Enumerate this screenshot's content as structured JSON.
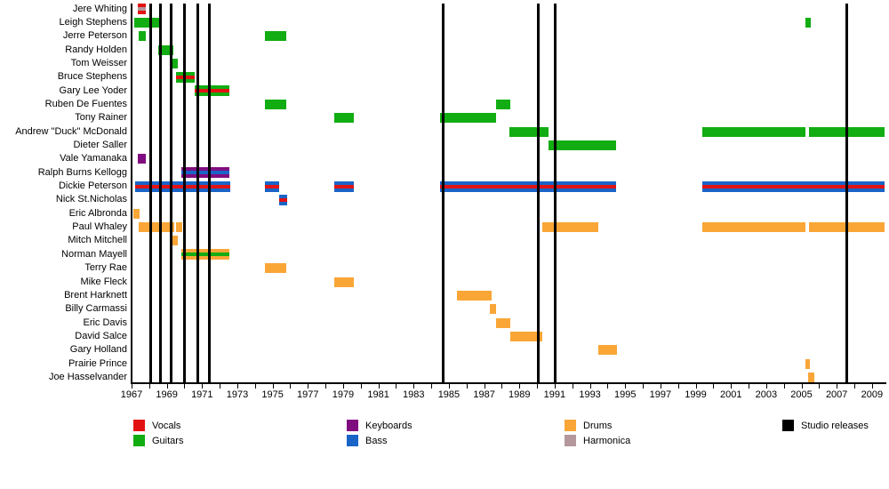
{
  "colors": {
    "vocals": "#e31212",
    "guitars": "#12ad12",
    "keyboards": "#800d80",
    "bass": "#1a64c8",
    "drums": "#f9a637",
    "harmonica": "#b3979b",
    "studio_release": "#000000",
    "axis": "#000000"
  },
  "legend": {
    "items": [
      {
        "label": "Vocals",
        "role": "vocals",
        "col": 0,
        "row": 0
      },
      {
        "label": "Guitars",
        "role": "guitars",
        "col": 0,
        "row": 1
      },
      {
        "label": "Keyboards",
        "role": "keyboards",
        "col": 1,
        "row": 0
      },
      {
        "label": "Bass",
        "role": "bass",
        "col": 1,
        "row": 1
      },
      {
        "label": "Drums",
        "role": "drums",
        "col": 2,
        "row": 0
      },
      {
        "label": "Harmonica",
        "role": "harmonica",
        "col": 2,
        "row": 1
      },
      {
        "label": "Studio releases",
        "role": "studio_release",
        "col": 3,
        "row": 0
      }
    ]
  },
  "chart_data": {
    "type": "timeline-gantt",
    "x_axis": {
      "start_year": 1967,
      "end_year": 2009.7,
      "minor_tick_every_years": 1,
      "tick_labels": [
        "1967",
        "1969",
        "1971",
        "1973",
        "1975",
        "1977",
        "1979",
        "1981",
        "1983",
        "1985",
        "1987",
        "1989",
        "1991",
        "1993",
        "1995",
        "1997",
        "1999",
        "2001",
        "2003",
        "2005",
        "2007",
        "2009"
      ]
    },
    "studio_release_years": [
      1968.1,
      1968.65,
      1969.25,
      1970.0,
      1970.75,
      1971.4,
      1984.7,
      1990.05,
      1991.05,
      2007.55
    ],
    "members": [
      {
        "name": "Jere Whiting",
        "segments": [
          {
            "start": 1967.35,
            "end": 1967.8,
            "roles": [
              "vocals",
              "harmonica"
            ]
          }
        ]
      },
      {
        "name": "Leigh Stephens",
        "segments": [
          {
            "start": 1967.15,
            "end": 1968.6,
            "roles": [
              "guitars"
            ]
          },
          {
            "start": 2005.2,
            "end": 2005.55,
            "roles": [
              "guitars"
            ]
          }
        ]
      },
      {
        "name": "Jerre Peterson",
        "segments": [
          {
            "start": 1967.4,
            "end": 1967.8,
            "roles": [
              "guitars"
            ]
          },
          {
            "start": 1974.55,
            "end": 1975.8,
            "roles": [
              "guitars"
            ]
          }
        ]
      },
      {
        "name": "Randy Holden",
        "segments": [
          {
            "start": 1968.5,
            "end": 1969.35,
            "roles": [
              "guitars"
            ]
          }
        ]
      },
      {
        "name": "Tom Weisser",
        "segments": [
          {
            "start": 1969.25,
            "end": 1969.6,
            "roles": [
              "guitars"
            ]
          }
        ]
      },
      {
        "name": "Bruce Stephens",
        "segments": [
          {
            "start": 1969.5,
            "end": 1970.6,
            "roles": [
              "guitars",
              "vocals"
            ]
          }
        ]
      },
      {
        "name": "Gary Lee Yoder",
        "segments": [
          {
            "start": 1970.6,
            "end": 1972.55,
            "roles": [
              "guitars",
              "vocals"
            ]
          }
        ]
      },
      {
        "name": "Ruben De Fuentes",
        "segments": [
          {
            "start": 1974.55,
            "end": 1975.8,
            "roles": [
              "guitars"
            ]
          },
          {
            "start": 1987.7,
            "end": 1988.5,
            "roles": [
              "guitars"
            ]
          }
        ]
      },
      {
        "name": "Tony Rainer",
        "segments": [
          {
            "start": 1978.5,
            "end": 1979.6,
            "roles": [
              "guitars"
            ]
          },
          {
            "start": 1984.5,
            "end": 1987.7,
            "roles": [
              "guitars"
            ]
          }
        ]
      },
      {
        "name": "Andrew \"Duck\" McDonald",
        "segments": [
          {
            "start": 1988.45,
            "end": 1990.65,
            "roles": [
              "guitars"
            ]
          },
          {
            "start": 1999.4,
            "end": 2005.25,
            "roles": [
              "guitars"
            ]
          },
          {
            "start": 2005.45,
            "end": 2009.7,
            "roles": [
              "guitars"
            ]
          }
        ]
      },
      {
        "name": "Dieter Saller",
        "segments": [
          {
            "start": 1990.65,
            "end": 1994.5,
            "roles": [
              "guitars"
            ]
          }
        ]
      },
      {
        "name": "Vale Yamanaka",
        "segments": [
          {
            "start": 1967.35,
            "end": 1967.8,
            "roles": [
              "keyboards"
            ]
          }
        ]
      },
      {
        "name": "Ralph Burns Kellogg",
        "segments": [
          {
            "start": 1969.8,
            "end": 1972.55,
            "roles": [
              "keyboards",
              "bass"
            ]
          }
        ]
      },
      {
        "name": "Dickie Peterson",
        "segments": [
          {
            "start": 1967.2,
            "end": 1972.6,
            "roles": [
              "bass",
              "vocals"
            ]
          },
          {
            "start": 1974.55,
            "end": 1975.35,
            "roles": [
              "bass",
              "vocals"
            ]
          },
          {
            "start": 1978.5,
            "end": 1979.6,
            "roles": [
              "bass",
              "vocals"
            ]
          },
          {
            "start": 1984.5,
            "end": 1994.5,
            "roles": [
              "bass",
              "vocals"
            ]
          },
          {
            "start": 1999.4,
            "end": 2009.7,
            "roles": [
              "bass",
              "vocals"
            ]
          }
        ]
      },
      {
        "name": "Nick St.Nicholas",
        "segments": [
          {
            "start": 1975.35,
            "end": 1975.8,
            "roles": [
              "bass",
              "vocals"
            ]
          }
        ]
      },
      {
        "name": "Eric Albronda",
        "segments": [
          {
            "start": 1967.1,
            "end": 1967.45,
            "roles": [
              "drums"
            ]
          }
        ]
      },
      {
        "name": "Paul Whaley",
        "segments": [
          {
            "start": 1967.4,
            "end": 1969.4,
            "roles": [
              "drums"
            ]
          },
          {
            "start": 1969.5,
            "end": 1969.9,
            "roles": [
              "drums"
            ]
          },
          {
            "start": 1990.3,
            "end": 1993.5,
            "roles": [
              "drums"
            ]
          },
          {
            "start": 1999.4,
            "end": 2005.25,
            "roles": [
              "drums"
            ]
          },
          {
            "start": 2005.45,
            "end": 2009.7,
            "roles": [
              "drums"
            ]
          }
        ]
      },
      {
        "name": "Mitch Mitchell",
        "segments": [
          {
            "start": 1969.3,
            "end": 1969.6,
            "roles": [
              "drums"
            ]
          }
        ]
      },
      {
        "name": "Norman Mayell",
        "segments": [
          {
            "start": 1969.8,
            "end": 1972.55,
            "roles": [
              "drums",
              "guitars"
            ]
          }
        ]
      },
      {
        "name": "Terry Rae",
        "segments": [
          {
            "start": 1974.55,
            "end": 1975.8,
            "roles": [
              "drums"
            ]
          }
        ]
      },
      {
        "name": "Mike Fleck",
        "segments": [
          {
            "start": 1978.5,
            "end": 1979.6,
            "roles": [
              "drums"
            ]
          }
        ]
      },
      {
        "name": "Brent Harknett",
        "segments": [
          {
            "start": 1985.45,
            "end": 1987.4,
            "roles": [
              "drums"
            ]
          }
        ]
      },
      {
        "name": "Billy Carmassi",
        "segments": [
          {
            "start": 1987.3,
            "end": 1987.7,
            "roles": [
              "drums"
            ]
          }
        ]
      },
      {
        "name": "Eric Davis",
        "segments": [
          {
            "start": 1987.7,
            "end": 1988.5,
            "roles": [
              "drums"
            ]
          }
        ]
      },
      {
        "name": "David Salce",
        "segments": [
          {
            "start": 1988.5,
            "end": 1990.3,
            "roles": [
              "drums"
            ]
          }
        ]
      },
      {
        "name": "Gary Holland",
        "segments": [
          {
            "start": 1993.5,
            "end": 1994.55,
            "roles": [
              "drums"
            ]
          }
        ]
      },
      {
        "name": "Prairie Prince",
        "segments": [
          {
            "start": 2005.2,
            "end": 2005.5,
            "roles": [
              "drums"
            ]
          }
        ]
      },
      {
        "name": "Joe Hasselvander",
        "segments": [
          {
            "start": 2005.4,
            "end": 2005.75,
            "roles": [
              "drums"
            ]
          }
        ]
      }
    ]
  }
}
